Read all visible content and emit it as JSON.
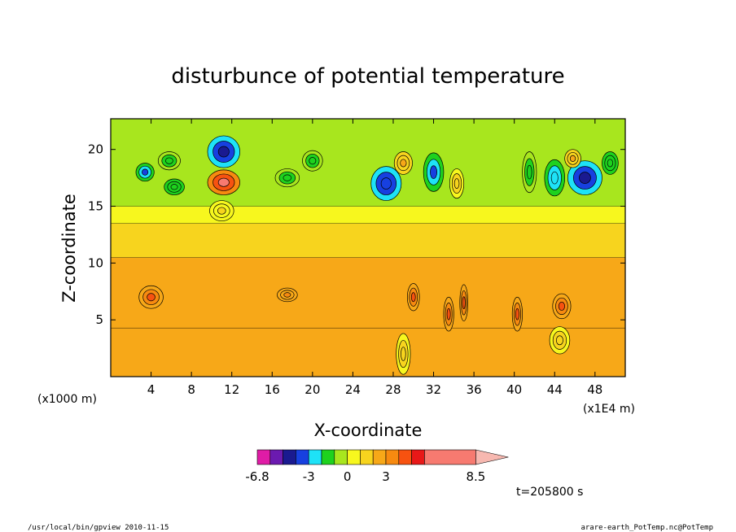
{
  "chart_data": {
    "type": "heatmap",
    "title": "disturbunce of potential temperature",
    "xlabel": "X-coordinate",
    "ylabel": "Z-coordinate",
    "x_unit_left": "(x1000 m)",
    "x_unit_right": "(x1E4 m)",
    "xlim": [
      0,
      51
    ],
    "ylim": [
      0,
      22.7
    ],
    "x_ticks": [
      4,
      8,
      12,
      16,
      20,
      24,
      28,
      32,
      36,
      40,
      44,
      48
    ],
    "y_ticks": [
      5,
      10,
      15,
      20
    ],
    "colorbar": {
      "colors": [
        "#e01ca6",
        "#6b1ab0",
        "#1a1a90",
        "#1740e0",
        "#1ee2f7",
        "#1ed21e",
        "#a8e61e",
        "#f7f71e",
        "#f7d41e",
        "#f7a818",
        "#f78a10",
        "#f75210",
        "#e81818",
        "#f77a70"
      ],
      "extend_color": "#f7b8b0",
      "labels": [
        "-6.8",
        "-3",
        "0",
        "3",
        "8.5"
      ],
      "label_levels": [
        -6.8,
        -3,
        0,
        3,
        8.5
      ],
      "levels": [
        -6.8,
        -6,
        -5,
        -4,
        -3,
        -2,
        -1,
        0,
        1,
        2,
        3,
        4,
        5,
        6,
        8.5
      ]
    },
    "background_layers": [
      {
        "z_top": 4.3,
        "value": 2.5
      },
      {
        "z_top": 10.5,
        "value": 2.0
      },
      {
        "z_top": 13.5,
        "value": 1.2
      },
      {
        "z_top": 15.0,
        "value": 0.5
      },
      {
        "z_top": 22.7,
        "value": -0.5
      }
    ],
    "features": [
      {
        "x": 11.2,
        "z": 17.1,
        "value": 6.0,
        "rx": 1.6,
        "rz": 1.1
      },
      {
        "x": 11.2,
        "z": 19.8,
        "value": -4.5,
        "rx": 1.6,
        "rz": 1.4
      },
      {
        "x": 11.0,
        "z": 14.6,
        "value": 1.0,
        "rx": 1.2,
        "rz": 0.9
      },
      {
        "x": 3.4,
        "z": 18.0,
        "value": -3.5,
        "rx": 0.9,
        "rz": 0.8
      },
      {
        "x": 6.3,
        "z": 16.7,
        "value": -2.0,
        "rx": 1.0,
        "rz": 0.7
      },
      {
        "x": 5.8,
        "z": 19.0,
        "value": -1.5,
        "rx": 1.1,
        "rz": 0.8
      },
      {
        "x": 17.5,
        "z": 17.5,
        "value": -1.5,
        "rx": 1.2,
        "rz": 0.8
      },
      {
        "x": 20.0,
        "z": 19.0,
        "value": -1.5,
        "rx": 1.0,
        "rz": 0.9
      },
      {
        "x": 27.3,
        "z": 17.0,
        "value": -4.0,
        "rx": 1.5,
        "rz": 1.5
      },
      {
        "x": 29.0,
        "z": 18.8,
        "value": 2.5,
        "rx": 0.9,
        "rz": 1.0
      },
      {
        "x": 32.0,
        "z": 18.0,
        "value": -3.5,
        "rx": 1.0,
        "rz": 1.7
      },
      {
        "x": 34.3,
        "z": 17.0,
        "value": 1.5,
        "rx": 0.7,
        "rz": 1.3
      },
      {
        "x": 41.5,
        "z": 18.0,
        "value": -1.5,
        "rx": 0.7,
        "rz": 1.8
      },
      {
        "x": 44.0,
        "z": 17.5,
        "value": -3.0,
        "rx": 1.0,
        "rz": 1.6
      },
      {
        "x": 47.0,
        "z": 17.5,
        "value": -4.5,
        "rx": 1.7,
        "rz": 1.5
      },
      {
        "x": 45.8,
        "z": 19.2,
        "value": 2.5,
        "rx": 0.8,
        "rz": 0.8
      },
      {
        "x": 49.5,
        "z": 18.8,
        "value": -2.0,
        "rx": 0.8,
        "rz": 1.0
      },
      {
        "x": 4.0,
        "z": 7.0,
        "value": 4.0,
        "rx": 1.2,
        "rz": 1.0
      },
      {
        "x": 17.5,
        "z": 7.2,
        "value": 3.8,
        "rx": 1.0,
        "rz": 0.6
      },
      {
        "x": 30.0,
        "z": 7.0,
        "value": 4.0,
        "rx": 0.6,
        "rz": 1.2
      },
      {
        "x": 33.5,
        "z": 5.5,
        "value": 4.0,
        "rx": 0.5,
        "rz": 1.5
      },
      {
        "x": 35.0,
        "z": 6.5,
        "value": 4.0,
        "rx": 0.4,
        "rz": 1.6
      },
      {
        "x": 40.3,
        "z": 5.5,
        "value": 4.0,
        "rx": 0.5,
        "rz": 1.5
      },
      {
        "x": 44.7,
        "z": 6.2,
        "value": 4.0,
        "rx": 0.9,
        "rz": 1.1
      },
      {
        "x": 44.5,
        "z": 3.2,
        "value": 1.5,
        "rx": 1.0,
        "rz": 1.2
      },
      {
        "x": 29.0,
        "z": 2.0,
        "value": 1.5,
        "rx": 0.7,
        "rz": 1.8
      }
    ]
  },
  "time_label": "t=205800 s",
  "footer_left": "/usr/local/bin/gpview  2010-11-15",
  "footer_right": "arare-earth_PotTemp.nc@PotTemp"
}
